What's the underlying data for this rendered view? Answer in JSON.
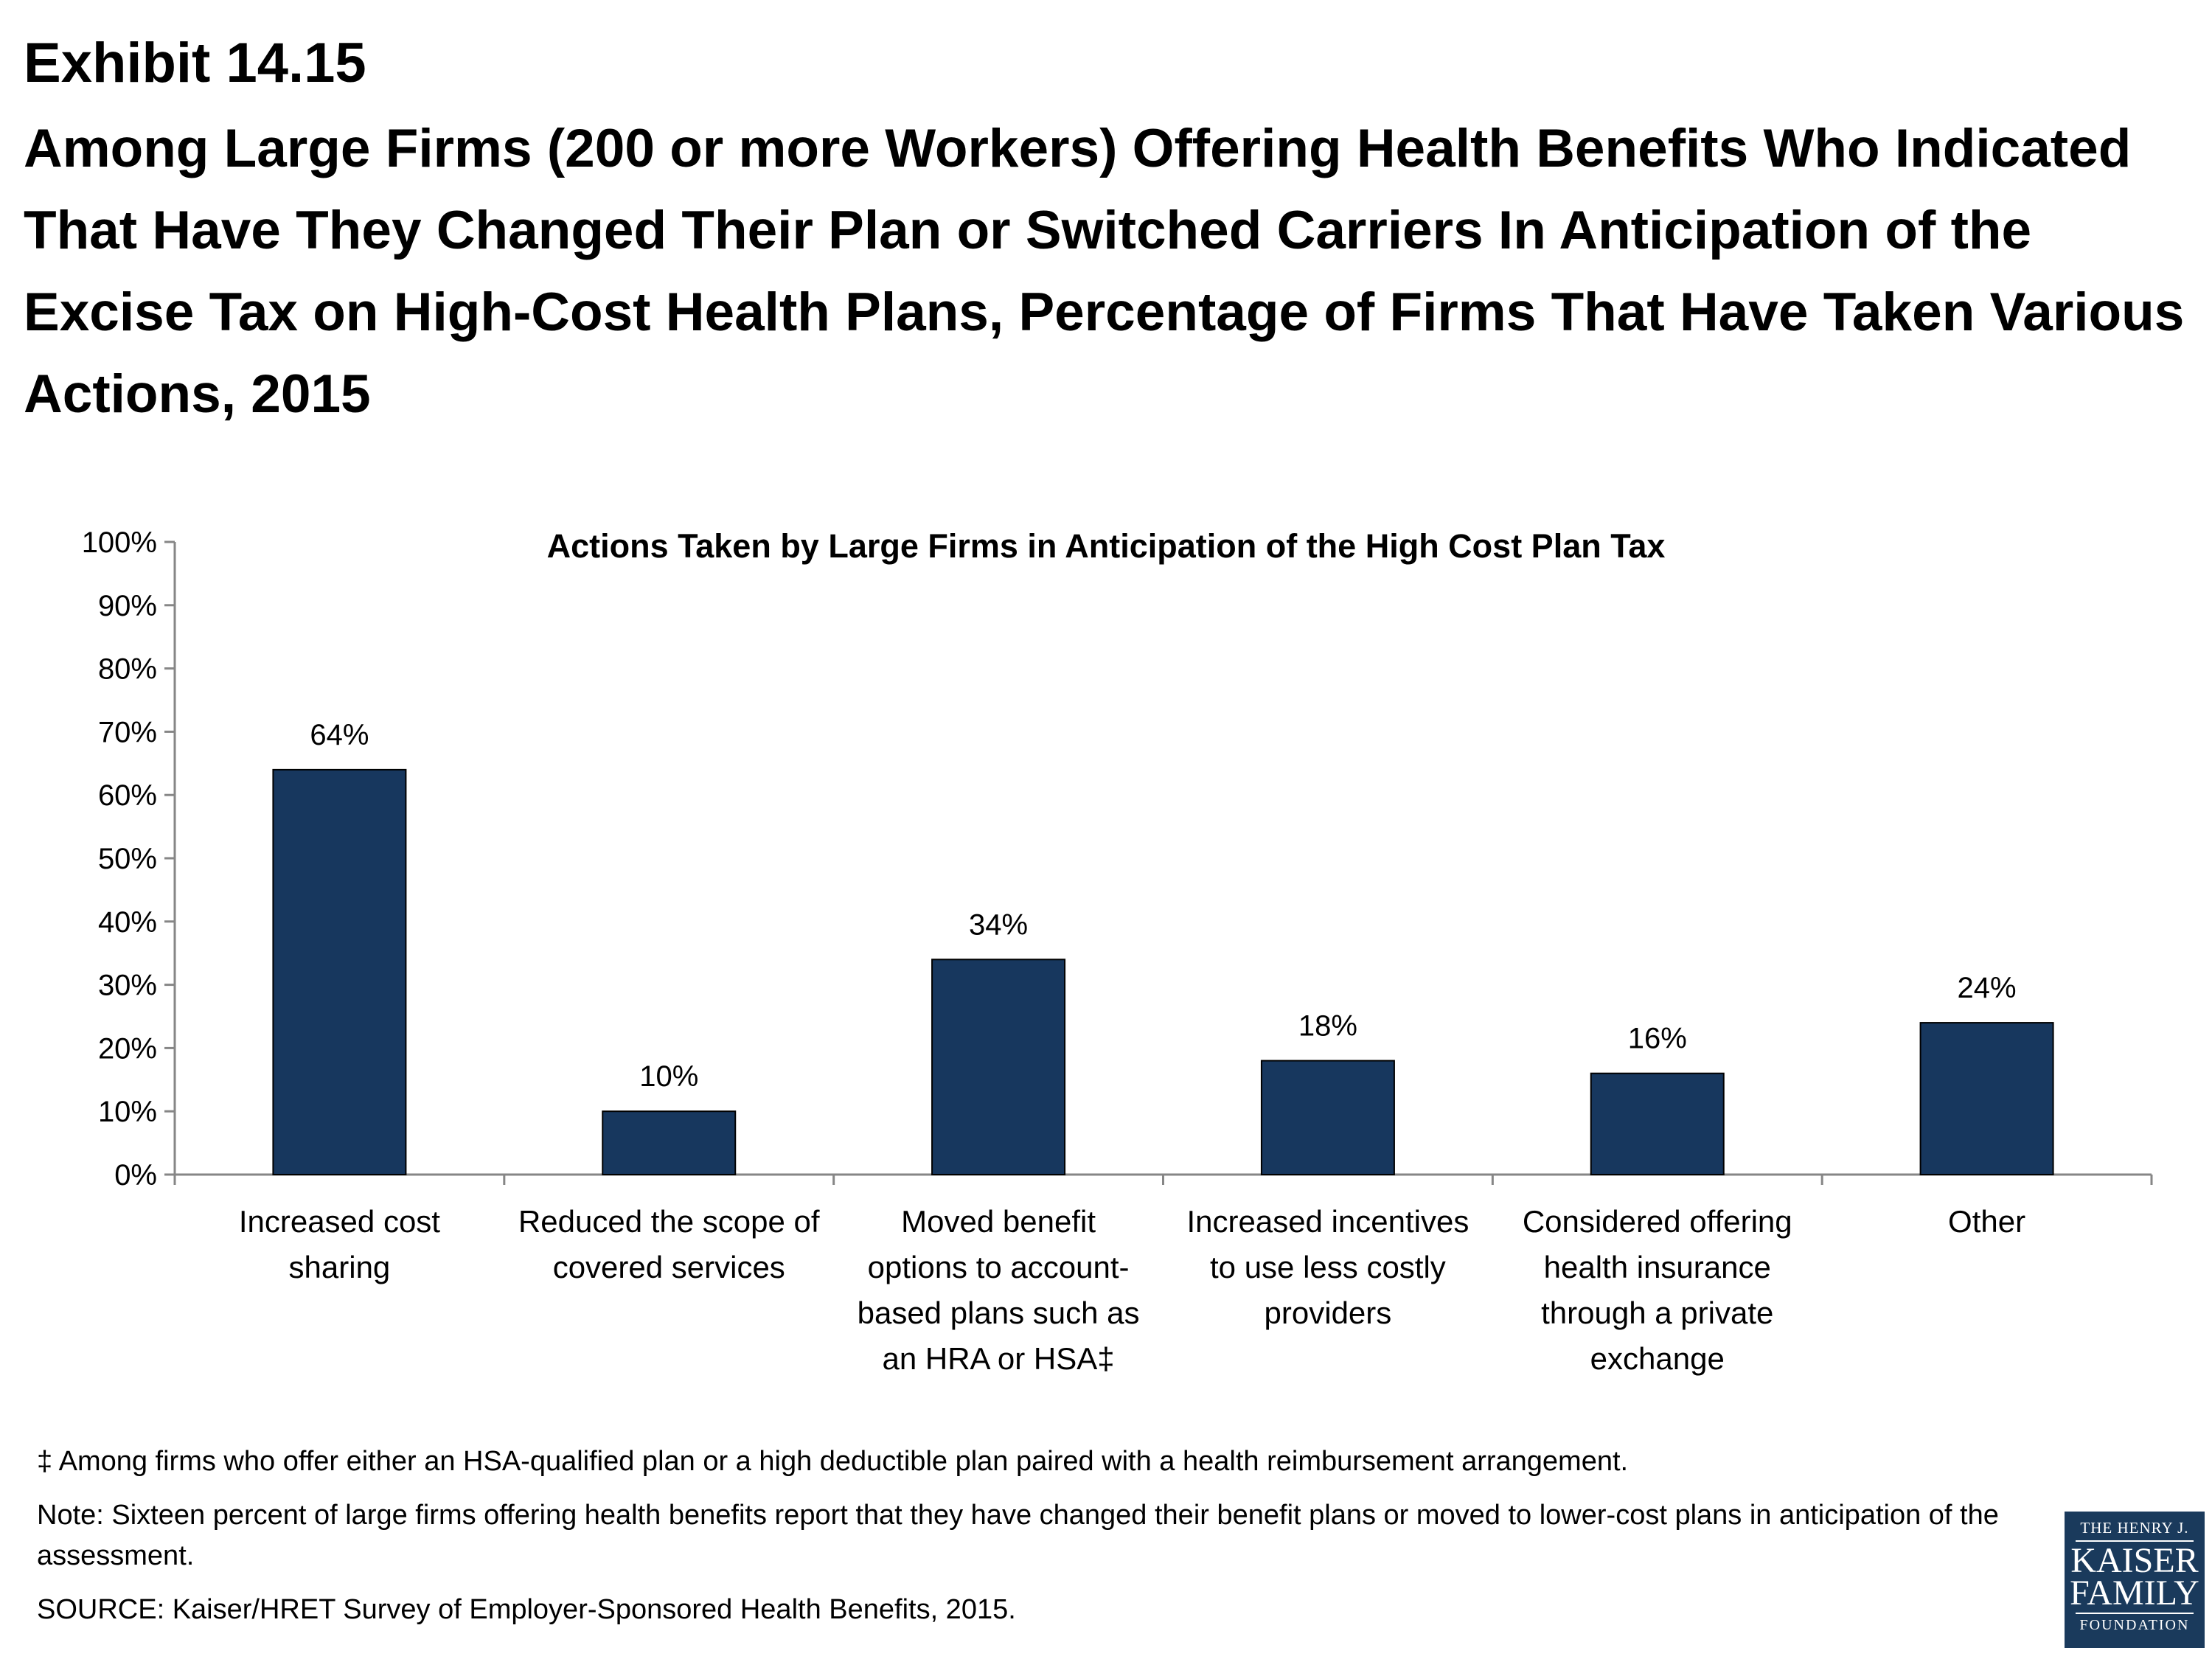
{
  "header": {
    "exhibit": "Exhibit 14.15",
    "title": "Among Large Firms (200 or more Workers) Offering Health Benefits Who Indicated That Have They Changed Their Plan or Switched Carriers In Anticipation of the Excise Tax on High-Cost Health Plans, Percentage of Firms That Have Taken Various Actions, 2015"
  },
  "chart_data": {
    "type": "bar",
    "title": "Actions Taken by Large Firms in Anticipation of the High Cost Plan Tax",
    "categories": [
      [
        "Increased cost",
        "sharing"
      ],
      [
        "Reduced the scope of",
        "covered services"
      ],
      [
        "Moved benefit",
        "options to account-",
        "based plans such as",
        "an HRA or HSA‡"
      ],
      [
        "Increased incentives",
        "to use less costly",
        "providers"
      ],
      [
        "Considered offering",
        "health insurance",
        "through a private",
        "exchange"
      ],
      [
        "Other"
      ]
    ],
    "values": [
      64,
      10,
      34,
      18,
      16,
      24
    ],
    "value_labels": [
      "64%",
      "10%",
      "34%",
      "18%",
      "16%",
      "24%"
    ],
    "ylim": [
      0,
      100
    ],
    "yticks": [
      "0%",
      "10%",
      "20%",
      "30%",
      "40%",
      "50%",
      "60%",
      "70%",
      "80%",
      "90%",
      "100%"
    ],
    "bar_color": "#17375e",
    "grid": false,
    "legend": "none"
  },
  "notes": {
    "dagger": "‡ Among firms who offer either an HSA-qualified plan or a high deductible plan paired with a health reimbursement arrangement.",
    "note": "Note: Sixteen percent of large firms  offering health benefits report that they have changed their benefit plans or moved to lower-cost plans in anticipation of the assessment.",
    "source": "SOURCE: Kaiser/HRET Survey of Employer-Sponsored Health Benefits, 2015."
  },
  "logo": {
    "line1": "THE HENRY J.",
    "line2": "KAISER",
    "line3": "FAMILY",
    "line4": "FOUNDATION"
  }
}
